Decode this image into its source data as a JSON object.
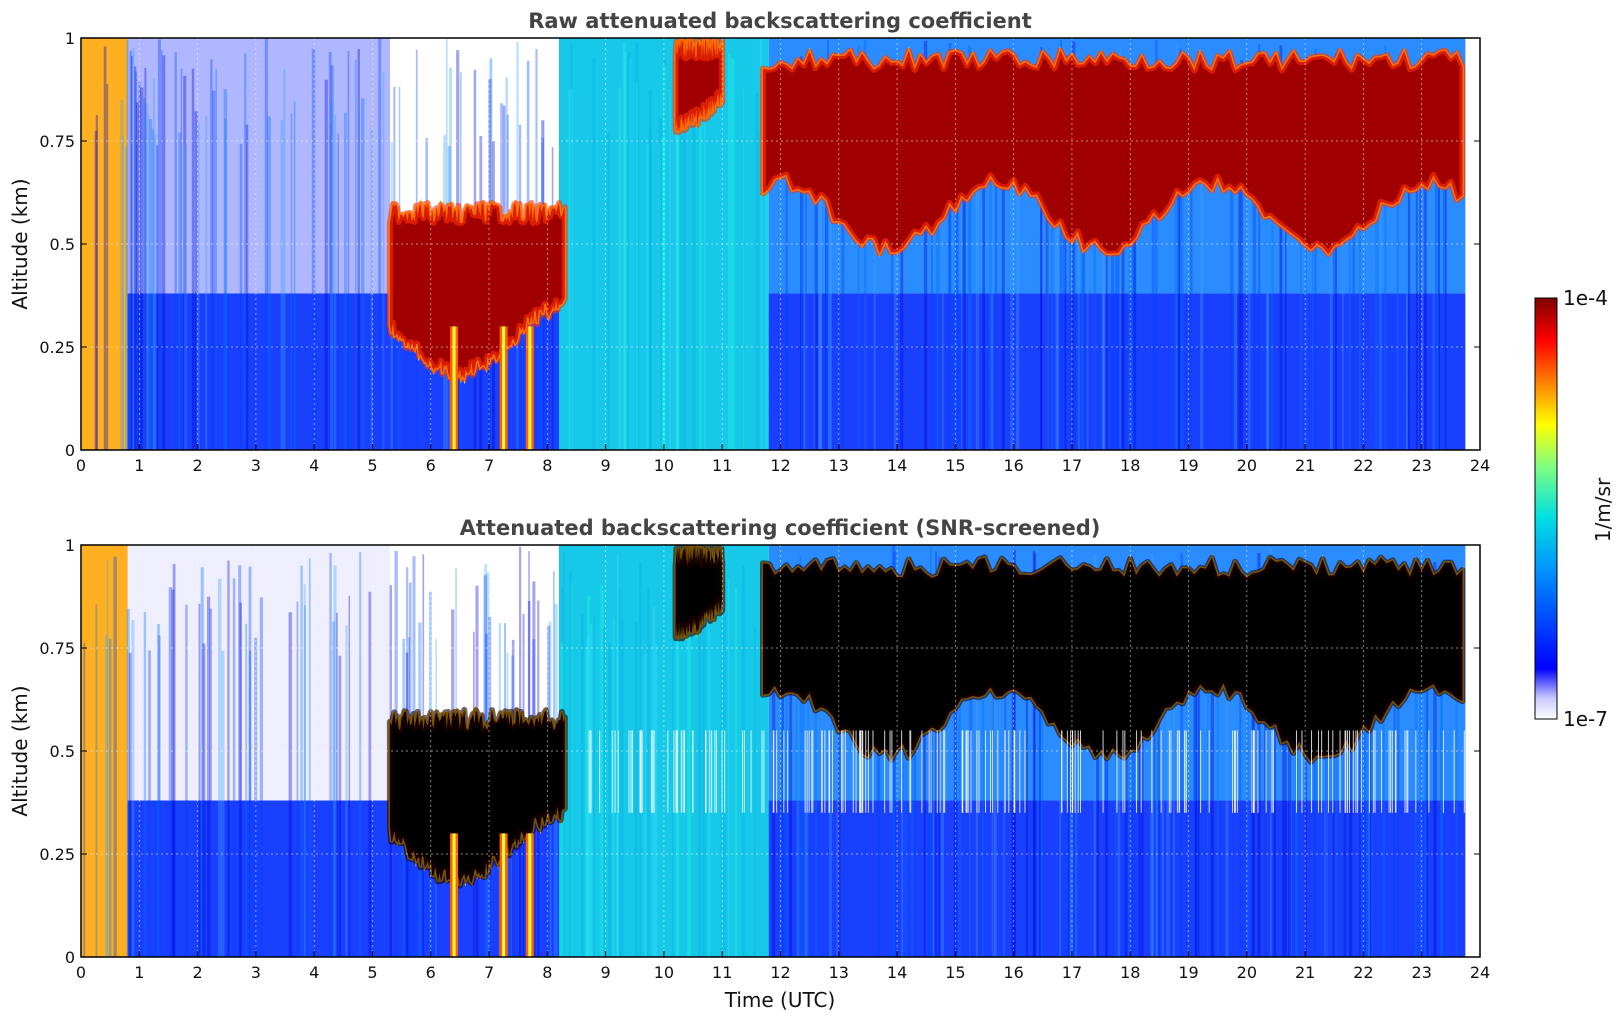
{
  "chart_data": [
    {
      "type": "heatmap",
      "title": "Raw attenuated backscattering coefficient",
      "xlabel": "",
      "ylabel": "Altitude (km)",
      "xlim": [
        0,
        24
      ],
      "ylim": [
        0,
        1
      ],
      "xticks": [
        "0",
        "1",
        "2",
        "3",
        "4",
        "5",
        "6",
        "7",
        "8",
        "9",
        "10",
        "11",
        "12",
        "13",
        "14",
        "15",
        "16",
        "17",
        "18",
        "19",
        "20",
        "21",
        "22",
        "23",
        "24"
      ],
      "yticks": [
        "0",
        "0.25",
        "0.5",
        "0.75",
        "1"
      ],
      "grid": true,
      "screened": false,
      "cloud_layers": [
        {
          "start": 5.3,
          "end": 8.3,
          "base_km": 0.25,
          "top_km": 0.6
        },
        {
          "start": 10.2,
          "end": 11.0,
          "base_km": 0.85,
          "top_km": 1.0
        },
        {
          "start": 11.7,
          "end": 23.7,
          "base_km": 0.55,
          "top_km": 0.97
        }
      ],
      "precipitation_shafts_hours": [
        6.4,
        7.25,
        7.7
      ],
      "data_end_hour": 23.75
    },
    {
      "type": "heatmap",
      "title": "Attenuated backscattering coefficient (SNR-screened)",
      "xlabel": "Time (UTC)",
      "ylabel": "Altitude (km)",
      "xlim": [
        0,
        24
      ],
      "ylim": [
        0,
        1
      ],
      "xticks": [
        "0",
        "1",
        "2",
        "3",
        "4",
        "5",
        "6",
        "7",
        "8",
        "9",
        "10",
        "11",
        "12",
        "13",
        "14",
        "15",
        "16",
        "17",
        "18",
        "19",
        "20",
        "21",
        "22",
        "23",
        "24"
      ],
      "yticks": [
        "0",
        "0.25",
        "0.5",
        "0.75",
        "1"
      ],
      "grid": true,
      "screened": true,
      "cloud_layers": [
        {
          "start": 5.3,
          "end": 8.3,
          "base_km": 0.25,
          "top_km": 0.6
        },
        {
          "start": 10.2,
          "end": 11.0,
          "base_km": 0.85,
          "top_km": 1.0
        },
        {
          "start": 11.7,
          "end": 23.7,
          "base_km": 0.55,
          "top_km": 0.97
        }
      ],
      "precipitation_shafts_hours": [
        6.4,
        7.25,
        7.7
      ],
      "data_end_hour": 23.75
    }
  ],
  "colorbar": {
    "label": "1/m/sr",
    "min_label": "1e-7",
    "max_label": "1e-4",
    "colors": [
      "#ffffff",
      "#0000ff",
      "#00bfff",
      "#00ffcc",
      "#ffff00",
      "#ff8000",
      "#ff0000",
      "#800000"
    ]
  }
}
